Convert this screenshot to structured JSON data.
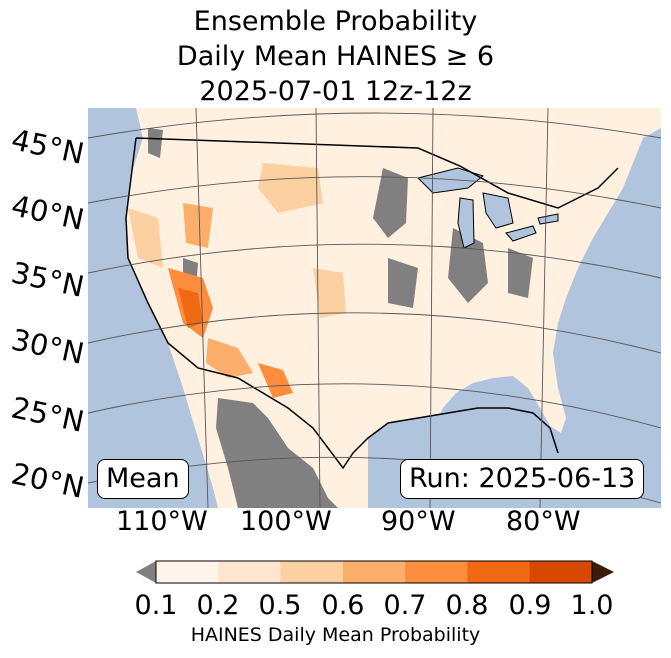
{
  "title": {
    "line1": "Ensemble Probability",
    "line2": "Daily Mean HAINES ≥ 6",
    "line3": "2025-07-01 12z-12z"
  },
  "lat_labels": [
    "45°N",
    "40°N",
    "35°N",
    "30°N",
    "25°N",
    "20°N"
  ],
  "lon_labels": [
    "110°W",
    "100°W",
    "90°W",
    "80°W"
  ],
  "boxes": {
    "left": "Mean",
    "right": "Run: 2025-06-13"
  },
  "colorbar": {
    "ticks": [
      "0.1",
      "0.2",
      "0.5",
      "0.6",
      "0.7",
      "0.8",
      "0.9",
      "1.0"
    ],
    "label": "HAINES Daily Mean Probability",
    "under_color": "#808080",
    "over_color": "#3a1b06",
    "colors": [
      "#fff5eb",
      "#fee6ce",
      "#fdd0a2",
      "#fdae6b",
      "#fd8d3c",
      "#f16913",
      "#d94801"
    ]
  },
  "map_colors": {
    "ocean": "#b0c4de",
    "land": "#fff0e0",
    "no_data": "#808080",
    "water": "#b0c4de"
  }
}
